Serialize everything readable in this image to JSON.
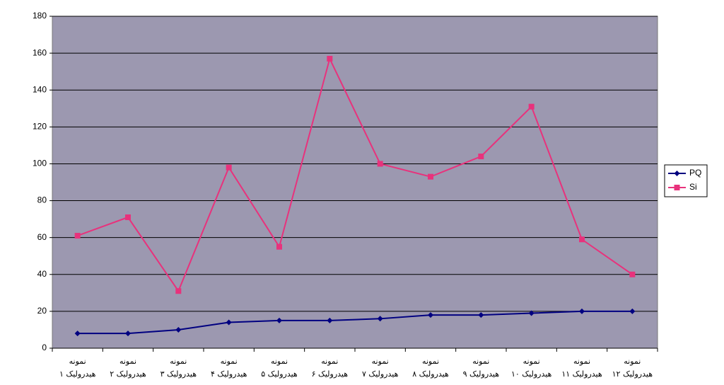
{
  "chart_data": {
    "type": "line",
    "categories": [
      "نمونه هیدرولیک ۱",
      "نمونه هیدرولیک ۲",
      "نمونه هیدرولیک ۳",
      "نمونه هیدرولیک ۴",
      "نمونه هیدرولیک ۵",
      "نمونه هیدرولیک ۶",
      "نمونه هیدرولیک ۷",
      "نمونه هیدرولیک ۸",
      "نمونه هیدرولیک ۹",
      "نمونه هیدرولیک ۱۰",
      "نمونه هیدرولیک ۱۱",
      "نمونه هیدرولیک ۱۲"
    ],
    "series": [
      {
        "name": "PQ",
        "color": "#000080",
        "marker": "diamond",
        "values": [
          8,
          8,
          10,
          14,
          15,
          15,
          16,
          18,
          18,
          19,
          20,
          20
        ]
      },
      {
        "name": "Si",
        "color": "#e8327c",
        "marker": "square",
        "values": [
          61,
          71,
          31,
          98,
          55,
          157,
          100,
          93,
          104,
          131,
          59,
          40
        ]
      }
    ],
    "ylim": [
      0,
      180
    ],
    "yticks": [
      0,
      20,
      40,
      60,
      80,
      100,
      120,
      140,
      160,
      180
    ],
    "grid": true,
    "legend": "right"
  }
}
